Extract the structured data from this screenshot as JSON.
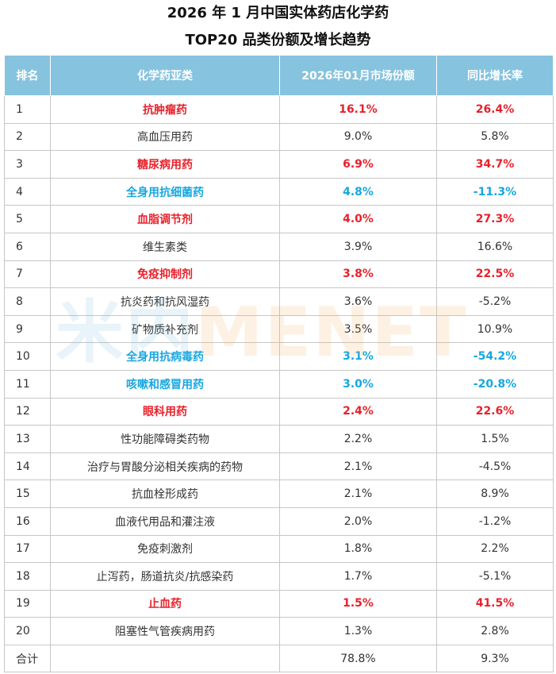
{
  "title": {
    "line1": "2026 年 1 月中国实体药店化学药",
    "line2": "TOP20 品类份额及增长趋势"
  },
  "watermark": {
    "cn": "米内",
    "en": "MENET"
  },
  "colors": {
    "header_bg": "#86c3df",
    "highlight_red": "#e8212b",
    "highlight_blue": "#16a7e0"
  },
  "chart_data": {
    "type": "table",
    "columns": [
      "排名",
      "化学药亚类",
      "2026年01月市场份额",
      "同比增长率"
    ],
    "rows": [
      {
        "rank": "1",
        "name": "抗肿瘤药",
        "share": "16.1%",
        "growth": "26.4%",
        "highlight": "red"
      },
      {
        "rank": "2",
        "name": "高血压用药",
        "share": "9.0%",
        "growth": "5.8%",
        "highlight": ""
      },
      {
        "rank": "3",
        "name": "糖尿病用药",
        "share": "6.9%",
        "growth": "34.7%",
        "highlight": "red"
      },
      {
        "rank": "4",
        "name": "全身用抗细菌药",
        "share": "4.8%",
        "growth": "-11.3%",
        "highlight": "blue"
      },
      {
        "rank": "5",
        "name": "血脂调节剂",
        "share": "4.0%",
        "growth": "27.3%",
        "highlight": "red"
      },
      {
        "rank": "6",
        "name": "维生素类",
        "share": "3.9%",
        "growth": "16.6%",
        "highlight": ""
      },
      {
        "rank": "7",
        "name": "免疫抑制剂",
        "share": "3.8%",
        "growth": "22.5%",
        "highlight": "red"
      },
      {
        "rank": "8",
        "name": "抗炎药和抗风湿药",
        "share": "3.6%",
        "growth": "-5.2%",
        "highlight": ""
      },
      {
        "rank": "9",
        "name": "矿物质补充剂",
        "share": "3.5%",
        "growth": "10.9%",
        "highlight": ""
      },
      {
        "rank": "10",
        "name": "全身用抗病毒药",
        "share": "3.1%",
        "growth": "-54.2%",
        "highlight": "blue"
      },
      {
        "rank": "11",
        "name": "咳嗽和感冒用药",
        "share": "3.0%",
        "growth": "-20.8%",
        "highlight": "blue"
      },
      {
        "rank": "12",
        "name": "眼科用药",
        "share": "2.4%",
        "growth": "22.6%",
        "highlight": "red"
      },
      {
        "rank": "13",
        "name": "性功能障碍类药物",
        "share": "2.2%",
        "growth": "1.5%",
        "highlight": ""
      },
      {
        "rank": "14",
        "name": "治疗与胃酸分泌相关疾病的药物",
        "share": "2.1%",
        "growth": "-4.5%",
        "highlight": ""
      },
      {
        "rank": "15",
        "name": "抗血栓形成药",
        "share": "2.1%",
        "growth": "8.9%",
        "highlight": ""
      },
      {
        "rank": "16",
        "name": "血液代用品和灌注液",
        "share": "2.0%",
        "growth": "-1.2%",
        "highlight": ""
      },
      {
        "rank": "17",
        "name": "免疫刺激剂",
        "share": "1.8%",
        "growth": "2.2%",
        "highlight": ""
      },
      {
        "rank": "18",
        "name": "止泻药，肠道抗炎/抗感染药",
        "share": "1.7%",
        "growth": "-5.1%",
        "highlight": ""
      },
      {
        "rank": "19",
        "name": "止血药",
        "share": "1.5%",
        "growth": "41.5%",
        "highlight": "red"
      },
      {
        "rank": "20",
        "name": "阻塞性气管疾病用药",
        "share": "1.3%",
        "growth": "2.8%",
        "highlight": ""
      }
    ],
    "total": {
      "label": "合计",
      "share": "78.8%",
      "growth": "9.3%"
    }
  }
}
